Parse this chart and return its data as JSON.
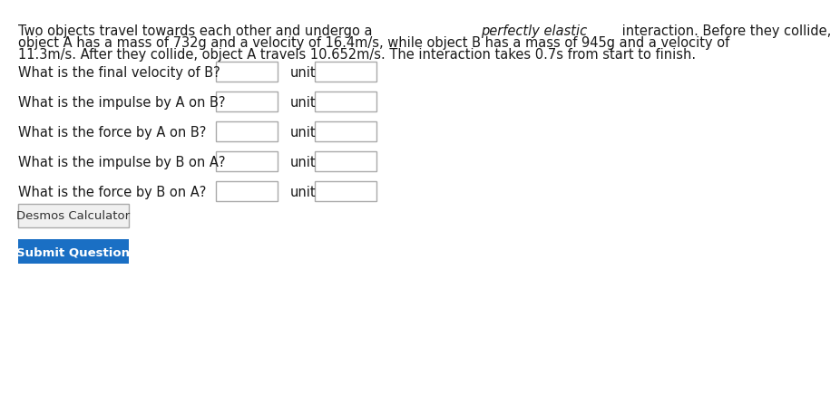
{
  "bg_color": "#ffffff",
  "line1_normal1": "Two objects travel towards each other and undergo a ",
  "line1_italic": "perfectly elastic",
  "line1_normal2": " interaction. Before they collide,",
  "line2": "object A has a mass of 732g and a velocity of 16.4m/s, while object B has a mass of 945g and a velocity of",
  "line3": "11.3m/s. After they collide, object A travels 10.652m/s. The interaction takes 0.7s from start to finish.",
  "questions": [
    "What is the final velocity of B?",
    "What is the impulse by A on B?",
    "What is the force by A on B?",
    "What is the impulse by B on A?",
    "What is the force by B on A?"
  ],
  "button_desmos_label": "Desmos Calculator",
  "button_submit_label": "Submit Question",
  "button_desmos_color": "#f0f0f0",
  "button_submit_color": "#1a6fc4",
  "button_submit_text_color": "#ffffff",
  "button_desmos_text_color": "#333333",
  "text_color": "#1a1a1a",
  "box_color": "#ffffff",
  "box_edge_color": "#aaaaaa",
  "font_size_para": 10.5,
  "font_size_q": 10.5,
  "unit_label": "unit"
}
